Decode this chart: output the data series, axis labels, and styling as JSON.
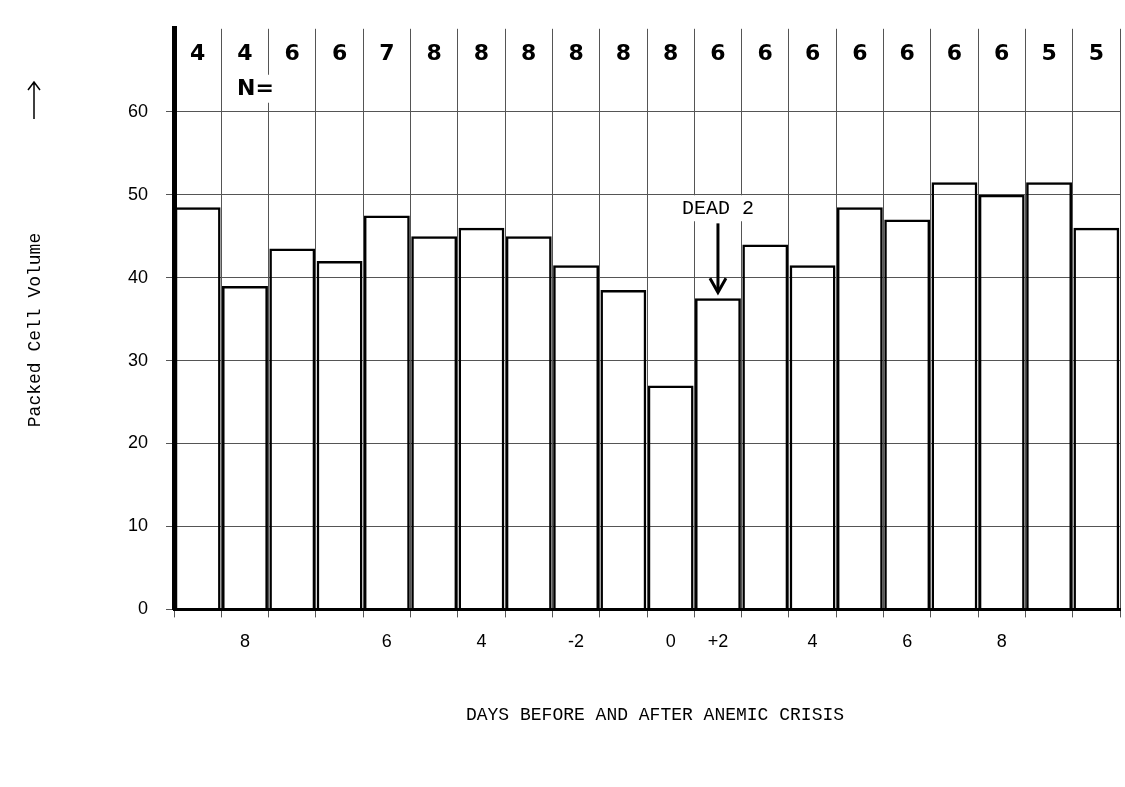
{
  "chart_data": {
    "type": "bar",
    "xlabel": "DAYS BEFORE AND AFTER ANEMIC CRISIS",
    "ylabel": "Packed Cell Volume",
    "categories": [
      null,
      "8",
      null,
      null,
      "6",
      null,
      "4",
      null,
      "-2",
      null,
      "0",
      "+2",
      null,
      "4",
      null,
      "6",
      null,
      "8",
      null,
      null
    ],
    "values": [
      48.5,
      39,
      43.5,
      42,
      47.5,
      45,
      46,
      45,
      41.5,
      38.5,
      27,
      37.5,
      44,
      41.5,
      48.5,
      47,
      51.5,
      50,
      51.5,
      46
    ],
    "color": "#000000",
    "ylim": [
      0,
      70
    ],
    "yticks": [
      0,
      10,
      20,
      30,
      40,
      50,
      60
    ],
    "grid": true,
    "annotations": [
      "N=",
      "4",
      "4",
      "6",
      "6",
      "7",
      "8",
      "8",
      "8",
      "8",
      "8",
      "8",
      "6",
      "6",
      "6",
      "6",
      "6",
      "6",
      "6",
      "5",
      "5",
      {
        "text": "DEAD 2",
        "x": "+2",
        "y": 37.5
      }
    ]
  }
}
